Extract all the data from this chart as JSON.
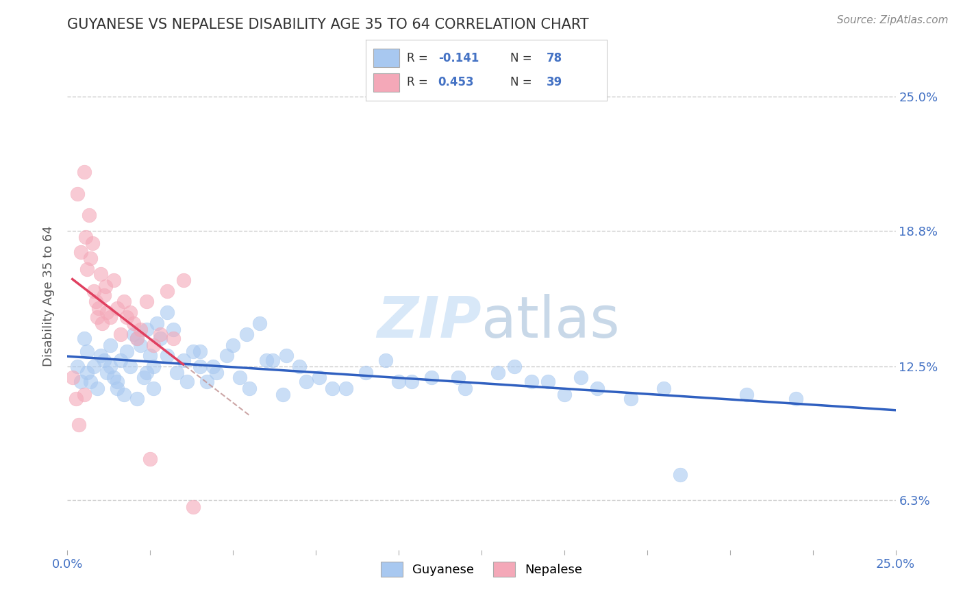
{
  "title": "GUYANESE VS NEPALESE DISABILITY AGE 35 TO 64 CORRELATION CHART",
  "source_text": "Source: ZipAtlas.com",
  "ylabel": "Disability Age 35 to 64",
  "xlim": [
    0.0,
    25.0
  ],
  "ylim": [
    4.0,
    27.5
  ],
  "ytick_positions": [
    6.3,
    12.5,
    18.8,
    25.0
  ],
  "ytick_labels": [
    "6.3%",
    "12.5%",
    "18.8%",
    "25.0%"
  ],
  "xtick_positions": [
    0.0,
    2.5,
    5.0,
    7.5,
    10.0,
    12.5,
    15.0,
    17.5,
    20.0,
    22.5,
    25.0
  ],
  "guyanese_color": "#A8C8F0",
  "nepalese_color": "#F4A8B8",
  "guyanese_line_color": "#3060C0",
  "nepalese_line_color": "#E04060",
  "nepalese_dashed_color": "#C09090",
  "R_guyanese": -0.141,
  "N_guyanese": 78,
  "R_nepalese": 0.453,
  "N_nepalese": 39,
  "legend_label_guyanese": "Guyanese",
  "legend_label_nepalese": "Nepalese",
  "guyanese_scatter": [
    [
      0.3,
      12.5
    ],
    [
      0.5,
      13.8
    ],
    [
      0.6,
      12.2
    ],
    [
      0.7,
      11.8
    ],
    [
      0.8,
      12.5
    ],
    [
      0.9,
      11.5
    ],
    [
      1.0,
      13.0
    ],
    [
      1.1,
      12.8
    ],
    [
      1.2,
      12.2
    ],
    [
      1.3,
      13.5
    ],
    [
      1.4,
      12.0
    ],
    [
      1.5,
      11.5
    ],
    [
      1.6,
      12.8
    ],
    [
      1.7,
      11.2
    ],
    [
      1.8,
      13.2
    ],
    [
      1.9,
      12.5
    ],
    [
      2.0,
      14.0
    ],
    [
      2.1,
      11.0
    ],
    [
      2.2,
      13.5
    ],
    [
      2.3,
      12.0
    ],
    [
      2.4,
      14.2
    ],
    [
      2.5,
      13.0
    ],
    [
      2.6,
      12.5
    ],
    [
      2.7,
      14.5
    ],
    [
      2.8,
      13.8
    ],
    [
      3.0,
      15.0
    ],
    [
      3.2,
      14.2
    ],
    [
      3.5,
      12.8
    ],
    [
      3.8,
      13.2
    ],
    [
      4.0,
      12.5
    ],
    [
      4.2,
      11.8
    ],
    [
      4.5,
      12.2
    ],
    [
      5.0,
      13.5
    ],
    [
      5.2,
      12.0
    ],
    [
      5.5,
      11.5
    ],
    [
      6.0,
      12.8
    ],
    [
      6.5,
      11.2
    ],
    [
      7.0,
      12.5
    ],
    [
      8.0,
      11.5
    ],
    [
      9.0,
      12.2
    ],
    [
      10.0,
      11.8
    ],
    [
      11.0,
      12.0
    ],
    [
      12.0,
      11.5
    ],
    [
      13.0,
      12.2
    ],
    [
      14.0,
      11.8
    ],
    [
      15.0,
      11.2
    ],
    [
      16.0,
      11.5
    ],
    [
      17.0,
      11.0
    ],
    [
      0.4,
      11.8
    ],
    [
      0.6,
      13.2
    ],
    [
      1.3,
      12.5
    ],
    [
      1.5,
      11.8
    ],
    [
      2.1,
      13.8
    ],
    [
      2.4,
      12.2
    ],
    [
      2.6,
      11.5
    ],
    [
      3.0,
      13.0
    ],
    [
      3.3,
      12.2
    ],
    [
      3.6,
      11.8
    ],
    [
      4.0,
      13.2
    ],
    [
      4.4,
      12.5
    ],
    [
      4.8,
      13.0
    ],
    [
      5.4,
      14.0
    ],
    [
      5.8,
      14.5
    ],
    [
      6.2,
      12.8
    ],
    [
      6.6,
      13.0
    ],
    [
      7.2,
      11.8
    ],
    [
      7.6,
      12.0
    ],
    [
      8.4,
      11.5
    ],
    [
      9.6,
      12.8
    ],
    [
      10.4,
      11.8
    ],
    [
      11.8,
      12.0
    ],
    [
      13.5,
      12.5
    ],
    [
      14.5,
      11.8
    ],
    [
      15.5,
      12.0
    ],
    [
      18.0,
      11.5
    ],
    [
      20.5,
      11.2
    ],
    [
      22.0,
      11.0
    ],
    [
      18.5,
      7.5
    ]
  ],
  "nepalese_scatter": [
    [
      0.15,
      12.0
    ],
    [
      0.25,
      11.0
    ],
    [
      0.3,
      20.5
    ],
    [
      0.4,
      17.8
    ],
    [
      0.5,
      21.5
    ],
    [
      0.55,
      18.5
    ],
    [
      0.6,
      17.0
    ],
    [
      0.65,
      19.5
    ],
    [
      0.7,
      17.5
    ],
    [
      0.75,
      18.2
    ],
    [
      0.8,
      16.0
    ],
    [
      0.85,
      15.5
    ],
    [
      0.9,
      14.8
    ],
    [
      0.95,
      15.2
    ],
    [
      1.0,
      16.8
    ],
    [
      1.05,
      14.5
    ],
    [
      1.1,
      15.8
    ],
    [
      1.15,
      16.2
    ],
    [
      1.2,
      15.0
    ],
    [
      1.3,
      14.8
    ],
    [
      1.4,
      16.5
    ],
    [
      1.5,
      15.2
    ],
    [
      1.6,
      14.0
    ],
    [
      1.7,
      15.5
    ],
    [
      1.8,
      14.8
    ],
    [
      1.9,
      15.0
    ],
    [
      2.0,
      14.5
    ],
    [
      2.1,
      13.8
    ],
    [
      2.2,
      14.2
    ],
    [
      2.4,
      15.5
    ],
    [
      2.6,
      13.5
    ],
    [
      2.8,
      14.0
    ],
    [
      3.0,
      16.0
    ],
    [
      3.2,
      13.8
    ],
    [
      3.5,
      16.5
    ],
    [
      0.35,
      9.8
    ],
    [
      0.5,
      11.2
    ],
    [
      2.5,
      8.2
    ],
    [
      3.8,
      6.0
    ]
  ],
  "background_color": "#FFFFFF",
  "grid_color": "#CCCCCC",
  "title_color": "#333333",
  "axis_label_color": "#555555",
  "tick_color": "#4472C4",
  "watermark_color": "#D8E8F8",
  "watermark_text": "ZIPatlas"
}
